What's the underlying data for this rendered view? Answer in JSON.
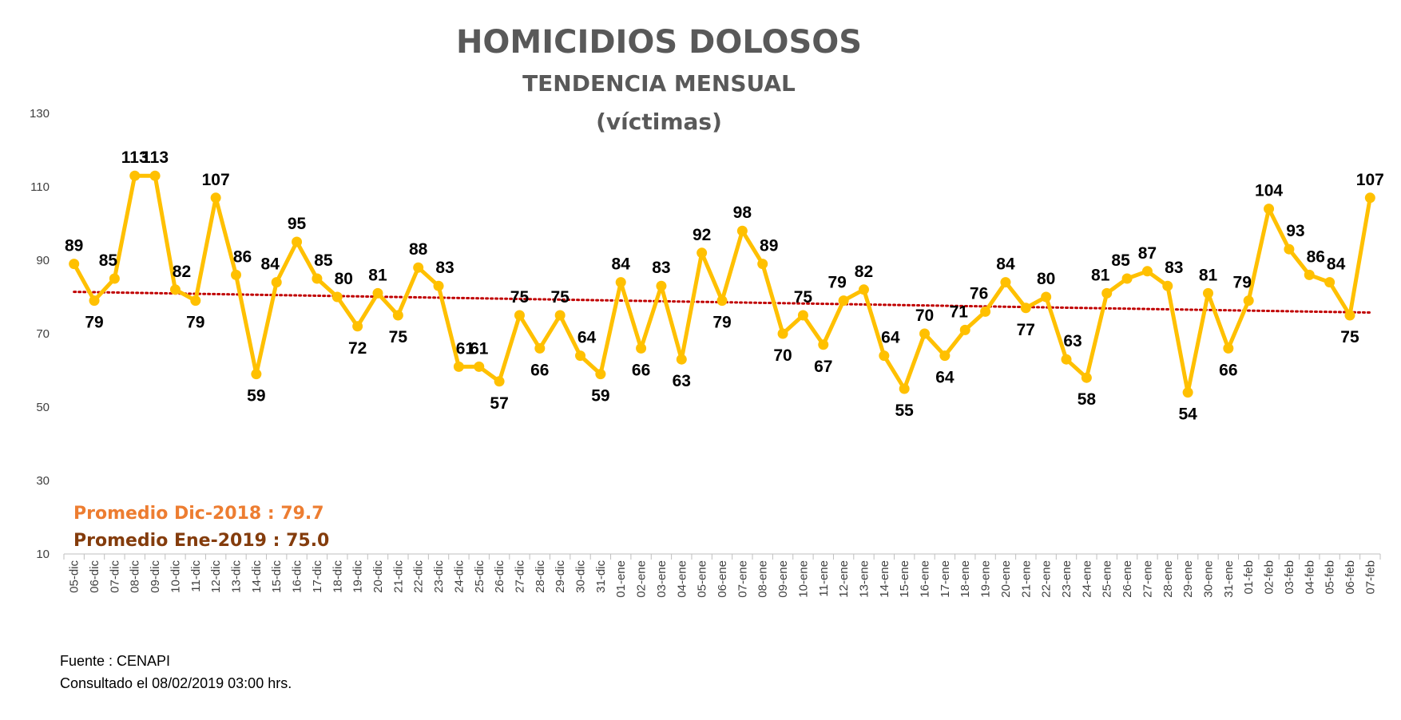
{
  "colors": {
    "line": "#FFC000",
    "trend": "#C00000",
    "avg_dec": "#ED7D31",
    "avg_jan": "#843C0C",
    "title": "#595959",
    "axis_text": "#404040"
  },
  "chart_data": {
    "type": "line",
    "title": "HOMICIDIOS DOLOSOS",
    "subtitle": "TENDENCIA MENSUAL",
    "subtitle2": "(víctimas)",
    "xlabel": "",
    "ylabel": "",
    "ylim": [
      10,
      130
    ],
    "yticks": [
      10,
      30,
      50,
      70,
      90,
      110,
      130
    ],
    "grid": false,
    "trendline": "linear, dotted",
    "categories": [
      "05-dic",
      "06-dic",
      "07-dic",
      "08-dic",
      "09-dic",
      "10-dic",
      "11-dic",
      "12-dic",
      "13-dic",
      "14-dic",
      "15-dic",
      "16-dic",
      "17-dic",
      "18-dic",
      "19-dic",
      "20-dic",
      "21-dic",
      "22-dic",
      "23-dic",
      "24-dic",
      "25-dic",
      "26-dic",
      "27-dic",
      "28-dic",
      "29-dic",
      "30-dic",
      "31-dic",
      "01-ene",
      "02-ene",
      "03-ene",
      "04-ene",
      "05-ene",
      "06-ene",
      "07-ene",
      "08-ene",
      "09-ene",
      "10-ene",
      "11-ene",
      "12-ene",
      "13-ene",
      "14-ene",
      "15-ene",
      "16-ene",
      "17-ene",
      "18-ene",
      "19-ene",
      "20-ene",
      "21-ene",
      "22-ene",
      "23-ene",
      "24-ene",
      "25-ene",
      "26-ene",
      "27-ene",
      "28-ene",
      "29-ene",
      "30-ene",
      "31-ene",
      "01-feb",
      "02-feb",
      "03-feb",
      "04-feb",
      "05-feb",
      "06-feb",
      "07-feb"
    ],
    "series": [
      {
        "values": [
          89,
          79,
          85,
          113,
          113,
          82,
          79,
          107,
          86,
          59,
          84,
          95,
          85,
          80,
          72,
          81,
          75,
          88,
          83,
          61,
          61,
          57,
          75,
          66,
          75,
          64,
          59,
          84,
          66,
          83,
          63,
          92,
          79,
          98,
          89,
          70,
          75,
          67,
          79,
          82,
          64,
          55,
          70,
          64,
          71,
          76,
          84,
          77,
          80,
          63,
          58,
          81,
          85,
          87,
          83,
          54,
          81,
          66,
          79,
          104,
          93,
          86,
          84,
          75,
          107
        ]
      }
    ],
    "annotations": [
      "Promedio Dic-2018  : 79.7",
      "Promedio Ene-2019 : 75.0"
    ]
  },
  "footer": {
    "source": "Fuente : CENAPI",
    "consulted": "Consultado el 08/02/2019  03:00 hrs."
  }
}
